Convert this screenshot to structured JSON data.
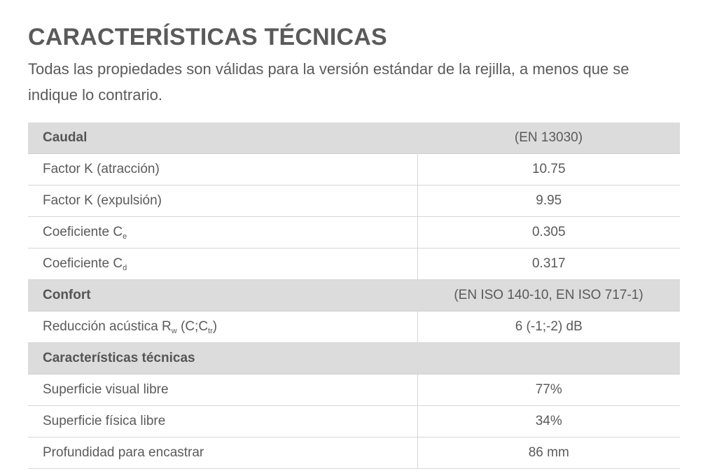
{
  "title": "CARACTERÍSTICAS TÉCNICAS",
  "intro": "Todas las propiedades son válidas para la versión estándar de la rejilla, a menos que se indique lo contrario.",
  "sections": [
    {
      "name": "Caudal",
      "standard": "(EN 13030)",
      "rows": [
        {
          "label": "Factor K (atracción)",
          "value": "10.75"
        },
        {
          "label": "Factor K (expulsión)",
          "value": "9.95"
        },
        {
          "label": "Coeficiente C",
          "label_sub": "e",
          "value": "0.305"
        },
        {
          "label": "Coeficiente C",
          "label_sub": "d",
          "value": "0.317"
        }
      ]
    },
    {
      "name": "Confort",
      "standard": "(EN ISO 140-10, EN ISO 717-1)",
      "rows": [
        {
          "label_parts": [
            "Reducción acústica R",
            "w",
            " (C;C",
            "tr",
            ")"
          ],
          "value": "6 (-1;-2) dB"
        }
      ]
    },
    {
      "name": "Características técnicas",
      "standard": "",
      "rows": [
        {
          "label": "Superficie visual libre",
          "value": "77%"
        },
        {
          "label": "Superficie física libre",
          "value": "34%"
        },
        {
          "label": "Profundidad para encastrar",
          "value": "86 mm"
        }
      ]
    }
  ]
}
